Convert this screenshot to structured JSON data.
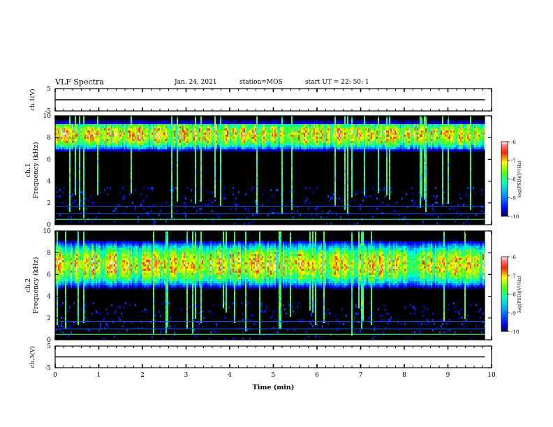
{
  "header": {
    "title": "VLF Spectra",
    "date": "Jan. 24, 2021",
    "station": "station=MOS",
    "start": "start UT =  22: 50: 1"
  },
  "colors": {
    "spectrogram_background": "#000000",
    "colorscale": [
      "#0000a0",
      "#0000ff",
      "#00a0ff",
      "#00ffff",
      "#00ff80",
      "#80ff00",
      "#ffff00",
      "#ff8000",
      "#ff0000",
      "#ffc0c0",
      "#ffffff"
    ]
  },
  "chart_data": [
    {
      "type": "line",
      "panel": "ch1-waveform",
      "ylabel": "ch.1(V)",
      "ylim": [
        -5,
        5
      ],
      "y_ticks": [
        "5",
        "-5"
      ],
      "x": [
        0,
        9.85
      ],
      "values": [
        0,
        0
      ]
    },
    {
      "type": "heatmap",
      "panel": "ch1-spectrogram",
      "ylabel": "ch.1\nFrequency (kHz)",
      "ylim": [
        0,
        10
      ],
      "y_ticks": [
        "0",
        "2",
        "4",
        "6",
        "8",
        "10"
      ],
      "xlim": [
        0,
        10
      ],
      "data_end_min": 9.85,
      "peak_band_khz": [
        7.5,
        9.2
      ],
      "colorbar": {
        "label": "log(PSD)(V²/Hz)",
        "range": [
          -10,
          -6
        ],
        "ticks": [
          "-6",
          "-7",
          "-8",
          "-9",
          "-10"
        ]
      }
    },
    {
      "type": "heatmap",
      "panel": "ch2-spectrogram",
      "ylabel": "ch.2\nFrequency (kHz)",
      "ylim": [
        0,
        10
      ],
      "y_ticks": [
        "0",
        "2",
        "4",
        "6",
        "8",
        "10"
      ],
      "xlim": [
        0,
        10
      ],
      "data_end_min": 9.85,
      "peak_band_khz": [
        5.5,
        8.5
      ],
      "colorbar": {
        "label": "log(PSD)(V²/Hz)",
        "range": [
          -10,
          -6
        ],
        "ticks": [
          "-6",
          "-7",
          "-8",
          "-9",
          "-10"
        ]
      }
    },
    {
      "type": "line",
      "panel": "ch3-waveform",
      "ylabel": "ch.3(V)",
      "ylim": [
        -5,
        5
      ],
      "y_ticks": [
        "5",
        "-5"
      ],
      "x": [
        0,
        9.85
      ],
      "values": [
        0,
        0
      ]
    }
  ],
  "x_axis": {
    "label": "Time (min)",
    "xlim": [
      0,
      10
    ],
    "ticks": [
      "0",
      "1",
      "2",
      "3",
      "4",
      "5",
      "6",
      "7",
      "8",
      "9",
      "10"
    ]
  }
}
